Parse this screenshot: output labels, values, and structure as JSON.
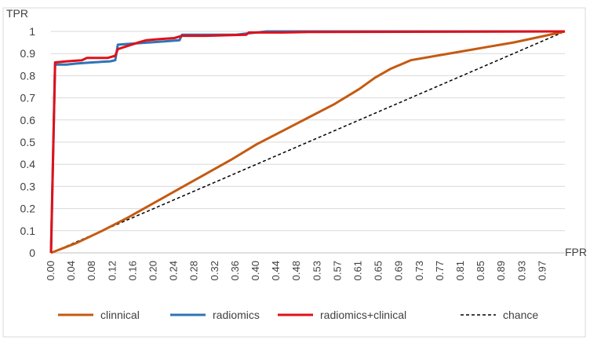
{
  "chart_data": {
    "type": "line",
    "xlabel": "FPR",
    "ylabel": "TPR",
    "xlim": [
      0,
      1
    ],
    "ylim": [
      0,
      1
    ],
    "y_ticks": [
      0,
      0.1,
      0.2,
      0.3,
      0.4,
      0.5,
      0.6,
      0.7,
      0.8,
      0.9,
      1
    ],
    "y_tick_labels": [
      "0",
      "0.1",
      "0.2",
      "0.3",
      "0.4",
      "0.5",
      "0.6",
      "0.7",
      "0.8",
      "0.9",
      "1"
    ],
    "x_tick_labels": [
      "0.00",
      "0.04",
      "0.08",
      "0.12",
      "0.16",
      "0.20",
      "0.24",
      "0.28",
      "0.32",
      "0.36",
      "0.40",
      "0.44",
      "0.48",
      "0.53",
      "0.57",
      "0.61",
      "0.65",
      "0.69",
      "0.73",
      "0.77",
      "0.81",
      "0.85",
      "0.89",
      "0.93",
      "0.97"
    ],
    "grid": true,
    "legend_position": "bottom",
    "series": [
      {
        "name": "clinnical",
        "color": "#c55a11",
        "dash": "solid",
        "points": [
          [
            0,
            0
          ],
          [
            0.05,
            0.045
          ],
          [
            0.1,
            0.1
          ],
          [
            0.15,
            0.16
          ],
          [
            0.2,
            0.225
          ],
          [
            0.25,
            0.29
          ],
          [
            0.3,
            0.355
          ],
          [
            0.35,
            0.42
          ],
          [
            0.4,
            0.49
          ],
          [
            0.45,
            0.55
          ],
          [
            0.5,
            0.61
          ],
          [
            0.55,
            0.67
          ],
          [
            0.6,
            0.74
          ],
          [
            0.63,
            0.79
          ],
          [
            0.66,
            0.83
          ],
          [
            0.7,
            0.87
          ],
          [
            0.75,
            0.89
          ],
          [
            0.8,
            0.91
          ],
          [
            0.85,
            0.93
          ],
          [
            0.9,
            0.95
          ],
          [
            0.95,
            0.975
          ],
          [
            1.0,
            1.0
          ]
        ]
      },
      {
        "name": "radiomics",
        "color": "#2e75b6",
        "dash": "solid",
        "points": [
          [
            0,
            0
          ],
          [
            0.008,
            0.85
          ],
          [
            0.03,
            0.85
          ],
          [
            0.05,
            0.855
          ],
          [
            0.08,
            0.86
          ],
          [
            0.115,
            0.865
          ],
          [
            0.125,
            0.87
          ],
          [
            0.13,
            0.94
          ],
          [
            0.16,
            0.945
          ],
          [
            0.19,
            0.95
          ],
          [
            0.22,
            0.955
          ],
          [
            0.25,
            0.96
          ],
          [
            0.255,
            0.985
          ],
          [
            0.3,
            0.985
          ],
          [
            0.36,
            0.985
          ],
          [
            0.38,
            0.99
          ],
          [
            0.42,
            1.0
          ],
          [
            1.0,
            1.0
          ]
        ]
      },
      {
        "name": "radiomics+clinical",
        "color": "#e0101a",
        "dash": "solid",
        "points": [
          [
            0,
            0
          ],
          [
            0.008,
            0.86
          ],
          [
            0.03,
            0.865
          ],
          [
            0.06,
            0.87
          ],
          [
            0.07,
            0.88
          ],
          [
            0.11,
            0.88
          ],
          [
            0.125,
            0.89
          ],
          [
            0.13,
            0.92
          ],
          [
            0.15,
            0.935
          ],
          [
            0.17,
            0.95
          ],
          [
            0.185,
            0.96
          ],
          [
            0.21,
            0.965
          ],
          [
            0.24,
            0.97
          ],
          [
            0.255,
            0.98
          ],
          [
            0.3,
            0.98
          ],
          [
            0.38,
            0.985
          ],
          [
            0.385,
            0.995
          ],
          [
            0.45,
            0.995
          ],
          [
            0.5,
            0.997
          ],
          [
            1.0,
            1.0
          ]
        ]
      },
      {
        "name": "chance",
        "color": "#000000",
        "dash": "dashed",
        "points": [
          [
            0,
            0
          ],
          [
            1,
            1
          ]
        ]
      }
    ]
  }
}
